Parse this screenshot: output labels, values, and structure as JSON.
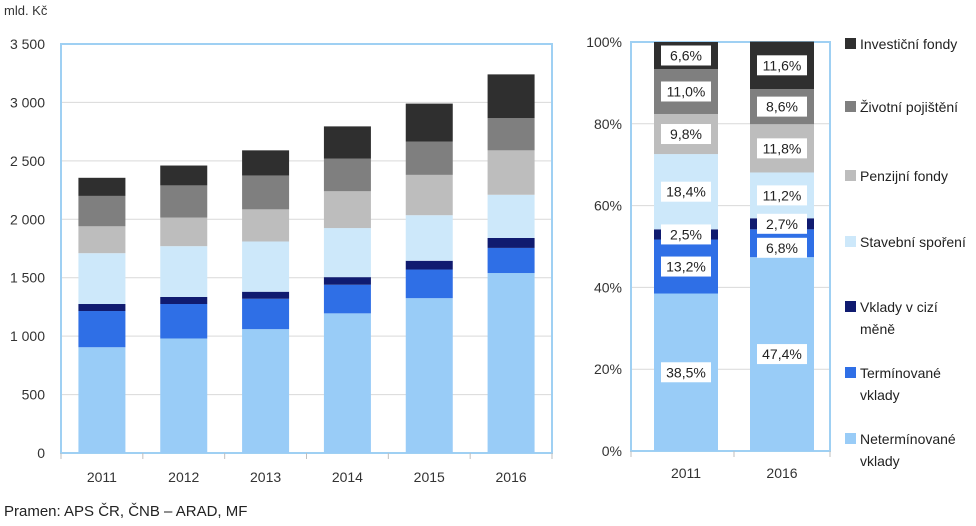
{
  "source": "Pramen: APS ČR, ČNB – ARAD, MF",
  "colors": {
    "Netermínované vklady": "#99ccf7",
    "Termínované vklady": "#2f6fe6",
    "Vklady v cizí měně": "#101b70",
    "Stavební spoření": "#cde8fa",
    "Penzijní fondy": "#bdbdbd",
    "Životní pojištění": "#7f7f7f",
    "Investiční fondy": "#2f2f2f",
    "frame": "#9fd0f3"
  },
  "chart_data": [
    {
      "type": "bar",
      "stacked": true,
      "ylabel": "mld. Kč",
      "ylim": [
        0,
        3500
      ],
      "yticks": [
        "0",
        "500",
        "1 000",
        "1 500",
        "2 000",
        "2 500",
        "3 000",
        "3 500"
      ],
      "ytick_values": [
        0,
        500,
        1000,
        1500,
        2000,
        2500,
        3000,
        3500
      ],
      "categories": [
        "2011",
        "2012",
        "2013",
        "2014",
        "2015",
        "2016"
      ],
      "series": [
        {
          "name": "Netermínované vklady",
          "values": [
            905,
            980,
            1060,
            1195,
            1325,
            1540
          ]
        },
        {
          "name": "Termínované vklady",
          "values": [
            310,
            295,
            260,
            245,
            245,
            215
          ]
        },
        {
          "name": "Vklady v cizí měně",
          "values": [
            60,
            60,
            60,
            65,
            75,
            85
          ]
        },
        {
          "name": "Stavební spoření",
          "values": [
            435,
            435,
            430,
            420,
            390,
            370
          ]
        },
        {
          "name": "Penzijní fondy",
          "values": [
            230,
            245,
            275,
            315,
            345,
            380
          ]
        },
        {
          "name": "Životní pojištění",
          "values": [
            260,
            275,
            290,
            280,
            285,
            275
          ]
        },
        {
          "name": "Investiční fondy",
          "values": [
            155,
            170,
            215,
            275,
            325,
            375
          ]
        }
      ],
      "grid": true
    },
    {
      "type": "bar",
      "stacked": true,
      "percent": true,
      "ylim": [
        0,
        100
      ],
      "yticks": [
        "0%",
        "20%",
        "40%",
        "60%",
        "80%",
        "100%"
      ],
      "ytick_values": [
        0,
        20,
        40,
        60,
        80,
        100
      ],
      "categories": [
        "2011",
        "2016"
      ],
      "series": [
        {
          "name": "Netermínované vklady",
          "values": [
            38.5,
            47.4
          ],
          "labels": [
            "38,5%",
            "47,4%"
          ]
        },
        {
          "name": "Termínované vklady",
          "values": [
            13.2,
            6.8
          ],
          "labels": [
            "13,2%",
            "6,8%"
          ]
        },
        {
          "name": "Vklady v cizí měně",
          "values": [
            2.5,
            2.7
          ],
          "labels": [
            "2,5%",
            "2,7%"
          ]
        },
        {
          "name": "Stavební spoření",
          "values": [
            18.4,
            11.2
          ],
          "labels": [
            "18,4%",
            "11,2%"
          ]
        },
        {
          "name": "Penzijní fondy",
          "values": [
            9.8,
            11.8
          ],
          "labels": [
            "9,8%",
            "11,8%"
          ]
        },
        {
          "name": "Životní pojištění",
          "values": [
            11.0,
            8.6
          ],
          "labels": [
            "11,0%",
            "8,6%"
          ]
        },
        {
          "name": "Investiční fondy",
          "values": [
            6.6,
            11.6
          ],
          "labels": [
            "6,6%",
            "11,6%"
          ]
        }
      ],
      "grid": true
    }
  ],
  "legend": {
    "placement": "right",
    "items": [
      {
        "name": "Investiční fondy",
        "lines": [
          "Investiční fondy"
        ]
      },
      {
        "name": "Životní pojištění",
        "lines": [
          "Životní pojištění"
        ]
      },
      {
        "name": "Penzijní fondy",
        "lines": [
          "Penzijní fondy"
        ]
      },
      {
        "name": "Stavební spoření",
        "lines": [
          "Stavební spoření"
        ]
      },
      {
        "name": "Vklady v cizí měně",
        "lines": [
          "Vklady v cizí",
          "měně"
        ]
      },
      {
        "name": "Termínované vklady",
        "lines": [
          "Termínované",
          "vklady"
        ]
      },
      {
        "name": "Netermínované vklady",
        "lines": [
          "Netermínované",
          "vklady"
        ]
      }
    ]
  }
}
